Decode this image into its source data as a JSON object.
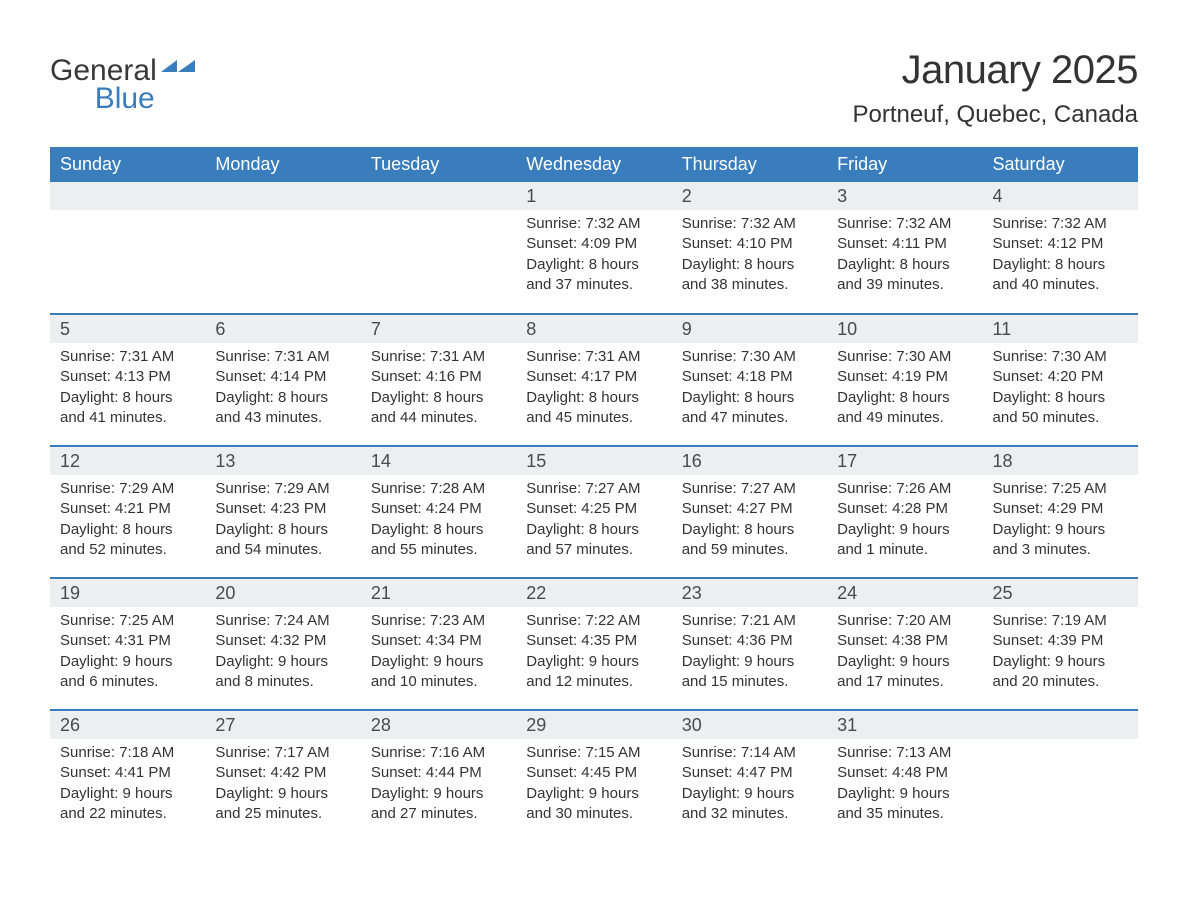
{
  "branding": {
    "logo_line1": "General",
    "logo_line2": "Blue",
    "logo_icon_color": "#3a7dbd",
    "logo_text_color": "#383838"
  },
  "header": {
    "month_year": "January 2025",
    "location": "Portneuf, Quebec, Canada"
  },
  "colors": {
    "header_bg": "#3a7dbd",
    "header_text": "#ffffff",
    "daynum_bg": "#edeef0",
    "row_border": "#3a7dbd",
    "body_text": "#333333"
  },
  "typography": {
    "month_title_fontsize": 40,
    "location_fontsize": 24,
    "dayheader_fontsize": 18,
    "daynum_fontsize": 18,
    "body_fontsize": 15
  },
  "day_headers": [
    "Sunday",
    "Monday",
    "Tuesday",
    "Wednesday",
    "Thursday",
    "Friday",
    "Saturday"
  ],
  "weeks": [
    [
      {
        "day": "",
        "sunrise": "",
        "sunset": "",
        "daylight1": "",
        "daylight2": ""
      },
      {
        "day": "",
        "sunrise": "",
        "sunset": "",
        "daylight1": "",
        "daylight2": ""
      },
      {
        "day": "",
        "sunrise": "",
        "sunset": "",
        "daylight1": "",
        "daylight2": ""
      },
      {
        "day": "1",
        "sunrise": "Sunrise: 7:32 AM",
        "sunset": "Sunset: 4:09 PM",
        "daylight1": "Daylight: 8 hours",
        "daylight2": "and 37 minutes."
      },
      {
        "day": "2",
        "sunrise": "Sunrise: 7:32 AM",
        "sunset": "Sunset: 4:10 PM",
        "daylight1": "Daylight: 8 hours",
        "daylight2": "and 38 minutes."
      },
      {
        "day": "3",
        "sunrise": "Sunrise: 7:32 AM",
        "sunset": "Sunset: 4:11 PM",
        "daylight1": "Daylight: 8 hours",
        "daylight2": "and 39 minutes."
      },
      {
        "day": "4",
        "sunrise": "Sunrise: 7:32 AM",
        "sunset": "Sunset: 4:12 PM",
        "daylight1": "Daylight: 8 hours",
        "daylight2": "and 40 minutes."
      }
    ],
    [
      {
        "day": "5",
        "sunrise": "Sunrise: 7:31 AM",
        "sunset": "Sunset: 4:13 PM",
        "daylight1": "Daylight: 8 hours",
        "daylight2": "and 41 minutes."
      },
      {
        "day": "6",
        "sunrise": "Sunrise: 7:31 AM",
        "sunset": "Sunset: 4:14 PM",
        "daylight1": "Daylight: 8 hours",
        "daylight2": "and 43 minutes."
      },
      {
        "day": "7",
        "sunrise": "Sunrise: 7:31 AM",
        "sunset": "Sunset: 4:16 PM",
        "daylight1": "Daylight: 8 hours",
        "daylight2": "and 44 minutes."
      },
      {
        "day": "8",
        "sunrise": "Sunrise: 7:31 AM",
        "sunset": "Sunset: 4:17 PM",
        "daylight1": "Daylight: 8 hours",
        "daylight2": "and 45 minutes."
      },
      {
        "day": "9",
        "sunrise": "Sunrise: 7:30 AM",
        "sunset": "Sunset: 4:18 PM",
        "daylight1": "Daylight: 8 hours",
        "daylight2": "and 47 minutes."
      },
      {
        "day": "10",
        "sunrise": "Sunrise: 7:30 AM",
        "sunset": "Sunset: 4:19 PM",
        "daylight1": "Daylight: 8 hours",
        "daylight2": "and 49 minutes."
      },
      {
        "day": "11",
        "sunrise": "Sunrise: 7:30 AM",
        "sunset": "Sunset: 4:20 PM",
        "daylight1": "Daylight: 8 hours",
        "daylight2": "and 50 minutes."
      }
    ],
    [
      {
        "day": "12",
        "sunrise": "Sunrise: 7:29 AM",
        "sunset": "Sunset: 4:21 PM",
        "daylight1": "Daylight: 8 hours",
        "daylight2": "and 52 minutes."
      },
      {
        "day": "13",
        "sunrise": "Sunrise: 7:29 AM",
        "sunset": "Sunset: 4:23 PM",
        "daylight1": "Daylight: 8 hours",
        "daylight2": "and 54 minutes."
      },
      {
        "day": "14",
        "sunrise": "Sunrise: 7:28 AM",
        "sunset": "Sunset: 4:24 PM",
        "daylight1": "Daylight: 8 hours",
        "daylight2": "and 55 minutes."
      },
      {
        "day": "15",
        "sunrise": "Sunrise: 7:27 AM",
        "sunset": "Sunset: 4:25 PM",
        "daylight1": "Daylight: 8 hours",
        "daylight2": "and 57 minutes."
      },
      {
        "day": "16",
        "sunrise": "Sunrise: 7:27 AM",
        "sunset": "Sunset: 4:27 PM",
        "daylight1": "Daylight: 8 hours",
        "daylight2": "and 59 minutes."
      },
      {
        "day": "17",
        "sunrise": "Sunrise: 7:26 AM",
        "sunset": "Sunset: 4:28 PM",
        "daylight1": "Daylight: 9 hours",
        "daylight2": "and 1 minute."
      },
      {
        "day": "18",
        "sunrise": "Sunrise: 7:25 AM",
        "sunset": "Sunset: 4:29 PM",
        "daylight1": "Daylight: 9 hours",
        "daylight2": "and 3 minutes."
      }
    ],
    [
      {
        "day": "19",
        "sunrise": "Sunrise: 7:25 AM",
        "sunset": "Sunset: 4:31 PM",
        "daylight1": "Daylight: 9 hours",
        "daylight2": "and 6 minutes."
      },
      {
        "day": "20",
        "sunrise": "Sunrise: 7:24 AM",
        "sunset": "Sunset: 4:32 PM",
        "daylight1": "Daylight: 9 hours",
        "daylight2": "and 8 minutes."
      },
      {
        "day": "21",
        "sunrise": "Sunrise: 7:23 AM",
        "sunset": "Sunset: 4:34 PM",
        "daylight1": "Daylight: 9 hours",
        "daylight2": "and 10 minutes."
      },
      {
        "day": "22",
        "sunrise": "Sunrise: 7:22 AM",
        "sunset": "Sunset: 4:35 PM",
        "daylight1": "Daylight: 9 hours",
        "daylight2": "and 12 minutes."
      },
      {
        "day": "23",
        "sunrise": "Sunrise: 7:21 AM",
        "sunset": "Sunset: 4:36 PM",
        "daylight1": "Daylight: 9 hours",
        "daylight2": "and 15 minutes."
      },
      {
        "day": "24",
        "sunrise": "Sunrise: 7:20 AM",
        "sunset": "Sunset: 4:38 PM",
        "daylight1": "Daylight: 9 hours",
        "daylight2": "and 17 minutes."
      },
      {
        "day": "25",
        "sunrise": "Sunrise: 7:19 AM",
        "sunset": "Sunset: 4:39 PM",
        "daylight1": "Daylight: 9 hours",
        "daylight2": "and 20 minutes."
      }
    ],
    [
      {
        "day": "26",
        "sunrise": "Sunrise: 7:18 AM",
        "sunset": "Sunset: 4:41 PM",
        "daylight1": "Daylight: 9 hours",
        "daylight2": "and 22 minutes."
      },
      {
        "day": "27",
        "sunrise": "Sunrise: 7:17 AM",
        "sunset": "Sunset: 4:42 PM",
        "daylight1": "Daylight: 9 hours",
        "daylight2": "and 25 minutes."
      },
      {
        "day": "28",
        "sunrise": "Sunrise: 7:16 AM",
        "sunset": "Sunset: 4:44 PM",
        "daylight1": "Daylight: 9 hours",
        "daylight2": "and 27 minutes."
      },
      {
        "day": "29",
        "sunrise": "Sunrise: 7:15 AM",
        "sunset": "Sunset: 4:45 PM",
        "daylight1": "Daylight: 9 hours",
        "daylight2": "and 30 minutes."
      },
      {
        "day": "30",
        "sunrise": "Sunrise: 7:14 AM",
        "sunset": "Sunset: 4:47 PM",
        "daylight1": "Daylight: 9 hours",
        "daylight2": "and 32 minutes."
      },
      {
        "day": "31",
        "sunrise": "Sunrise: 7:13 AM",
        "sunset": "Sunset: 4:48 PM",
        "daylight1": "Daylight: 9 hours",
        "daylight2": "and 35 minutes."
      },
      {
        "day": "",
        "sunrise": "",
        "sunset": "",
        "daylight1": "",
        "daylight2": ""
      }
    ]
  ]
}
